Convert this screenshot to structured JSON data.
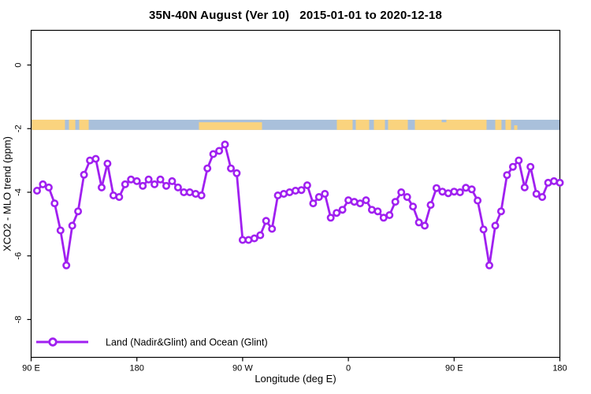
{
  "title": "35N-40N August (Ver 10)   2015-01-01 to 2020-12-18",
  "legend": {
    "label": "Land (Nadir&Glint) and Ocean (Glint)"
  },
  "colors": {
    "line": "#A020F0",
    "marker_fill": "#ffffff",
    "land": "#FAD37E",
    "ocean": "#A9C0DB",
    "axis": "#000000",
    "background": "#ffffff"
  },
  "chart_data": {
    "type": "line",
    "title": "35N-40N August (Ver 10)   2015-01-01 to 2020-12-18",
    "xlabel": "Longitude (deg E)",
    "ylabel": "XCO2 - MLO trend (ppm)",
    "xlim": [
      90,
      540
    ],
    "ylim": [
      -9.19,
      1.09
    ],
    "grid": false,
    "legend_position": "bottom-left",
    "x_ticks": [
      {
        "lon": 90,
        "label": "90 E"
      },
      {
        "lon": 180,
        "label": "180"
      },
      {
        "lon": 270,
        "label": "90 W"
      },
      {
        "lon": 360,
        "label": "0"
      },
      {
        "lon": 450,
        "label": "90 E"
      },
      {
        "lon": 540,
        "label": "180"
      }
    ],
    "y_ticks": [
      {
        "value": 0,
        "label": "0"
      },
      {
        "value": -2,
        "label": "-2"
      },
      {
        "value": -4,
        "label": "-4"
      },
      {
        "value": -6,
        "label": "-6"
      },
      {
        "value": -8,
        "label": "-8"
      }
    ],
    "x": [
      95,
      100,
      105,
      110,
      115,
      120,
      125,
      130,
      135,
      140,
      145,
      150,
      155,
      160,
      165,
      170,
      175,
      180,
      185,
      190,
      195,
      200,
      205,
      210,
      215,
      220,
      225,
      230,
      235,
      240,
      245,
      250,
      255,
      260,
      265,
      270,
      275,
      280,
      285,
      290,
      295,
      300,
      305,
      310,
      315,
      320,
      325,
      330,
      335,
      340,
      345,
      350,
      355,
      360,
      365,
      370,
      375,
      380,
      385,
      390,
      395,
      400,
      405,
      410,
      415,
      420,
      425,
      430,
      435,
      440,
      445,
      450,
      455,
      460,
      465,
      470,
      475,
      480,
      485,
      490,
      495,
      500,
      505,
      510,
      515,
      520,
      525,
      530,
      535,
      540
    ],
    "y": [
      -3.95,
      -3.75,
      -3.85,
      -4.35,
      -5.2,
      -6.3,
      -5.05,
      -4.6,
      -3.45,
      -3.0,
      -2.95,
      -3.85,
      -3.1,
      -4.1,
      -4.15,
      -3.75,
      -3.6,
      -3.65,
      -3.8,
      -3.6,
      -3.75,
      -3.6,
      -3.8,
      -3.65,
      -3.85,
      -4.0,
      -4.0,
      -4.05,
      -4.1,
      -3.25,
      -2.8,
      -2.7,
      -2.5,
      -3.25,
      -3.4,
      -5.5,
      -5.5,
      -5.45,
      -5.35,
      -4.9,
      -5.15,
      -4.1,
      -4.05,
      -4.0,
      -3.95,
      -3.93,
      -3.78,
      -4.35,
      -4.15,
      -4.05,
      -4.8,
      -4.65,
      -4.55,
      -4.25,
      -4.3,
      -4.35,
      -4.25,
      -4.55,
      -4.6,
      -4.8,
      -4.72,
      -4.3,
      -4.0,
      -4.15,
      -4.45,
      -4.95,
      -5.05,
      -4.4,
      -3.87,
      -3.98,
      -4.03,
      -3.98,
      -4.0,
      -3.86,
      -3.91,
      -4.26,
      -5.17,
      -6.3,
      -5.05,
      -4.6,
      -3.46,
      -3.2,
      -3.0,
      -3.85,
      -3.2,
      -4.05,
      -4.15,
      -3.7,
      -3.65,
      -3.7
    ],
    "map_band": {
      "band_value_top": -1.72,
      "band_value_bottom": -2.04,
      "base": "ocean",
      "land_segments_lon": [
        [
          90.6,
          118.8
        ],
        [
          122.2,
          127.6
        ],
        [
          130.9,
          139.0
        ],
        [
          232.8,
          286.5
        ],
        [
          350.2,
          363.6
        ],
        [
          366.3,
          377.7
        ],
        [
          381.7,
          391.1
        ],
        [
          393.8,
          410.6
        ],
        [
          416.6,
          477.6
        ],
        [
          485.0,
          490.3
        ],
        [
          493.7,
          498.4
        ]
      ],
      "top_ocean_slivers_lon": [
        [
          232.8,
          286.5
        ],
        [
          439.4,
          443.4
        ]
      ],
      "bottom_land_slivers_lon": [
        [
          501.1,
          503.8
        ]
      ]
    }
  }
}
